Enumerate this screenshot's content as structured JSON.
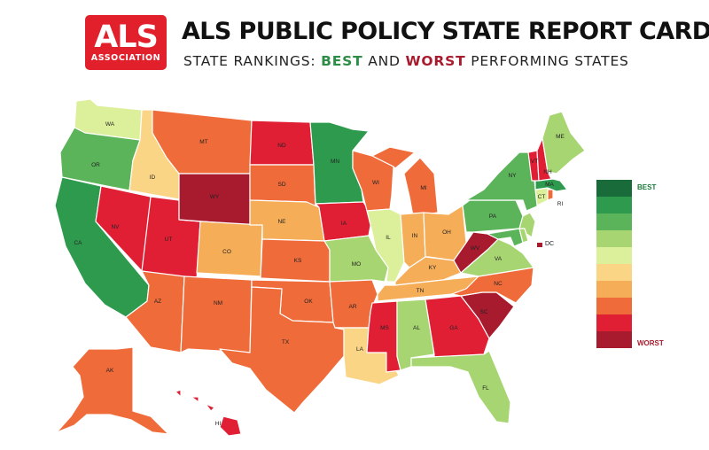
{
  "header": {
    "logo_main": "ALS",
    "logo_sub": "ASSOCIATION",
    "title": "ALS PUBLIC POLICY STATE REPORT CARDS",
    "subtitle_prefix": "STATE RANKINGS: ",
    "subtitle_best": "BEST",
    "subtitle_middle": " AND ",
    "subtitle_worst": "WORST",
    "subtitle_suffix": " PERFORMING STATES"
  },
  "legend": {
    "best_label": "BEST",
    "worst_label": "WORST",
    "colors": [
      "#1a6b3a",
      "#2e9a4e",
      "#5bb45a",
      "#a7d572",
      "#dcef9a",
      "#fbd586",
      "#f6ad58",
      "#ef6b3a",
      "#e01f35",
      "#a81b2e"
    ]
  },
  "states": {
    "WA": {
      "label": "WA",
      "tier": 4
    },
    "OR": {
      "label": "OR",
      "tier": 2
    },
    "CA": {
      "label": "CA",
      "tier": 1
    },
    "ID": {
      "label": "ID",
      "tier": 5
    },
    "NV": {
      "label": "NV",
      "tier": 8
    },
    "UT": {
      "label": "UT",
      "tier": 8
    },
    "AZ": {
      "label": "AZ",
      "tier": 7
    },
    "MT": {
      "label": "MT",
      "tier": 7
    },
    "WY": {
      "label": "WY",
      "tier": 9
    },
    "CO": {
      "label": "CO",
      "tier": 6
    },
    "NM": {
      "label": "NM",
      "tier": 7
    },
    "ND": {
      "label": "ND",
      "tier": 8
    },
    "SD": {
      "label": "SD",
      "tier": 7
    },
    "NE": {
      "label": "NE",
      "tier": 6
    },
    "KS": {
      "label": "KS",
      "tier": 7
    },
    "OK": {
      "label": "OK",
      "tier": 7
    },
    "TX": {
      "label": "TX",
      "tier": 7
    },
    "MN": {
      "label": "MN",
      "tier": 1
    },
    "IA": {
      "label": "IA",
      "tier": 8
    },
    "MO": {
      "label": "MO",
      "tier": 3
    },
    "AR": {
      "label": "AR",
      "tier": 7
    },
    "LA": {
      "label": "LA",
      "tier": 5
    },
    "WI": {
      "label": "WI",
      "tier": 7
    },
    "IL": {
      "label": "IL",
      "tier": 4
    },
    "MI": {
      "label": "MI",
      "tier": 7
    },
    "IN": {
      "label": "IN",
      "tier": 6
    },
    "OH": {
      "label": "OH",
      "tier": 6
    },
    "KY": {
      "label": "KY",
      "tier": 6
    },
    "TN": {
      "label": "TN",
      "tier": 6
    },
    "MS": {
      "label": "MS",
      "tier": 8
    },
    "AL": {
      "label": "AL",
      "tier": 3
    },
    "GA": {
      "label": "GA",
      "tier": 8
    },
    "FL": {
      "label": "FL",
      "tier": 3
    },
    "SC": {
      "label": "SC",
      "tier": 9
    },
    "NC": {
      "label": "NC",
      "tier": 7
    },
    "VA": {
      "label": "VA",
      "tier": 3
    },
    "WV": {
      "label": "WV",
      "tier": 9
    },
    "PA": {
      "label": "PA",
      "tier": 2
    },
    "NY": {
      "label": "NY",
      "tier": 2
    },
    "MD": {
      "label": "",
      "tier": 2
    },
    "DE": {
      "label": "",
      "tier": 3
    },
    "NJ": {
      "label": "",
      "tier": 3
    },
    "CT": {
      "label": "CT",
      "tier": 4
    },
    "RI": {
      "label": "RI",
      "tier": 7
    },
    "MA": {
      "label": "MA",
      "tier": 1
    },
    "VT": {
      "label": "VT",
      "tier": 8
    },
    "NH": {
      "label": "NH",
      "tier": 8
    },
    "ME": {
      "label": "ME",
      "tier": 3
    },
    "AK": {
      "label": "AK",
      "tier": 7
    },
    "HI": {
      "label": "HI",
      "tier": 8
    }
  },
  "dc": {
    "label": "DC",
    "tier": 9
  }
}
